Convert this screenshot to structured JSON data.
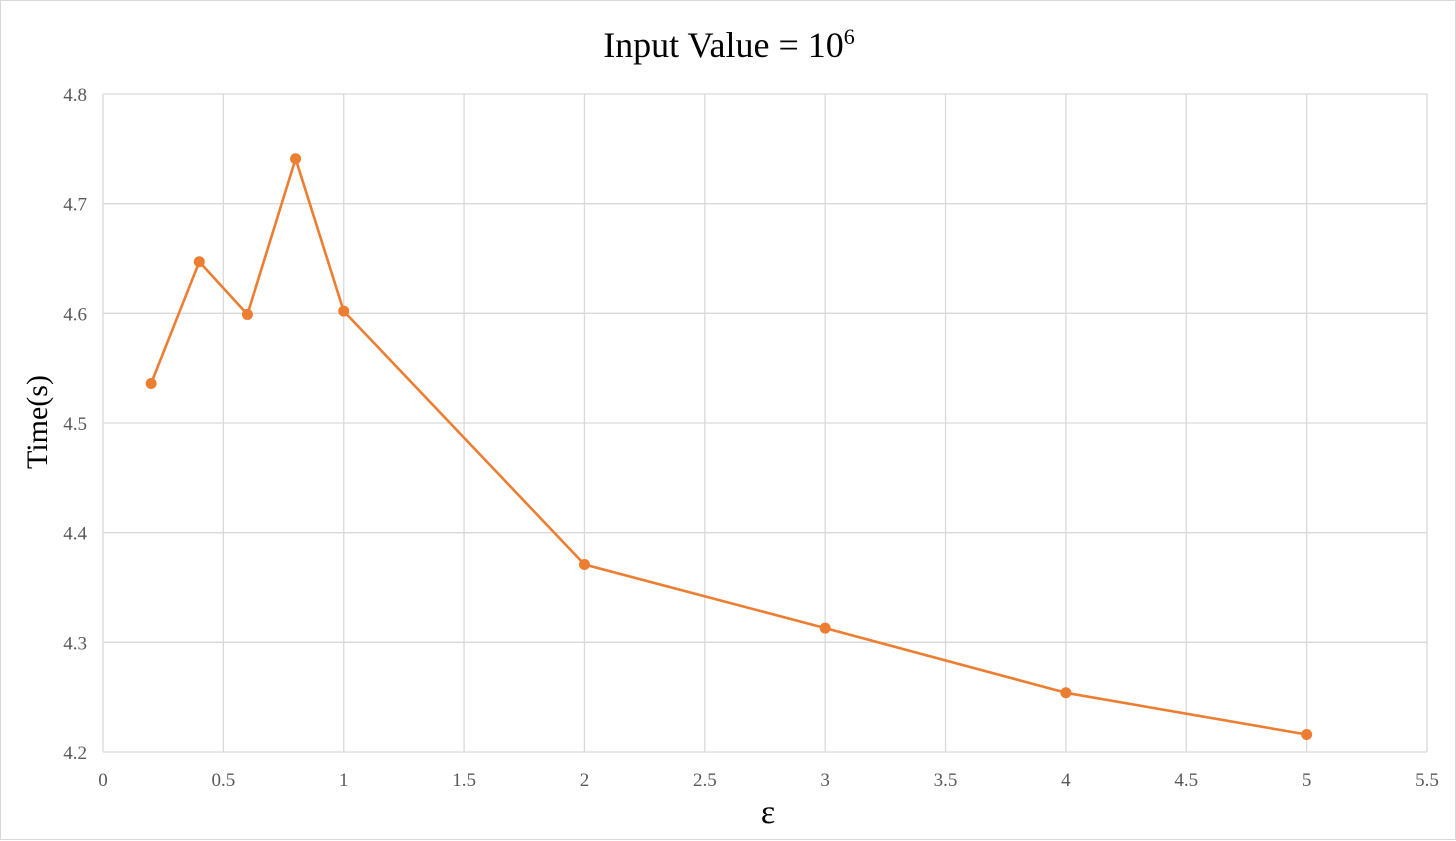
{
  "chart_data": {
    "type": "scatter",
    "title": "Input Value = 10",
    "title_superscript": "6",
    "xlabel": "ε",
    "ylabel": "Time(s)",
    "xlim": [
      0,
      5.5
    ],
    "ylim": [
      4.2,
      4.8
    ],
    "x_ticks": [
      0,
      0.5,
      1,
      1.5,
      2,
      2.5,
      3,
      3.5,
      4,
      4.5,
      5,
      5.5
    ],
    "y_ticks": [
      4.2,
      4.3,
      4.4,
      4.5,
      4.6,
      4.7,
      4.8
    ],
    "x_tick_labels": [
      "0",
      "0.5",
      "1",
      "1.5",
      "2",
      "2.5",
      "3",
      "3.5",
      "4",
      "4.5",
      "5",
      "5.5"
    ],
    "y_tick_labels": [
      "4.2",
      "4.3",
      "4.4",
      "4.5",
      "4.6",
      "4.7",
      "4.8"
    ],
    "grid": true,
    "legend": "none",
    "series": [
      {
        "color": "#ed7d31",
        "markers": true,
        "x": [
          0.2,
          0.4,
          0.6,
          0.8,
          1,
          2,
          3,
          4,
          5
        ],
        "y": [
          4.536,
          4.647,
          4.599,
          4.741,
          4.602,
          4.371,
          4.313,
          4.254,
          4.216
        ]
      }
    ]
  }
}
